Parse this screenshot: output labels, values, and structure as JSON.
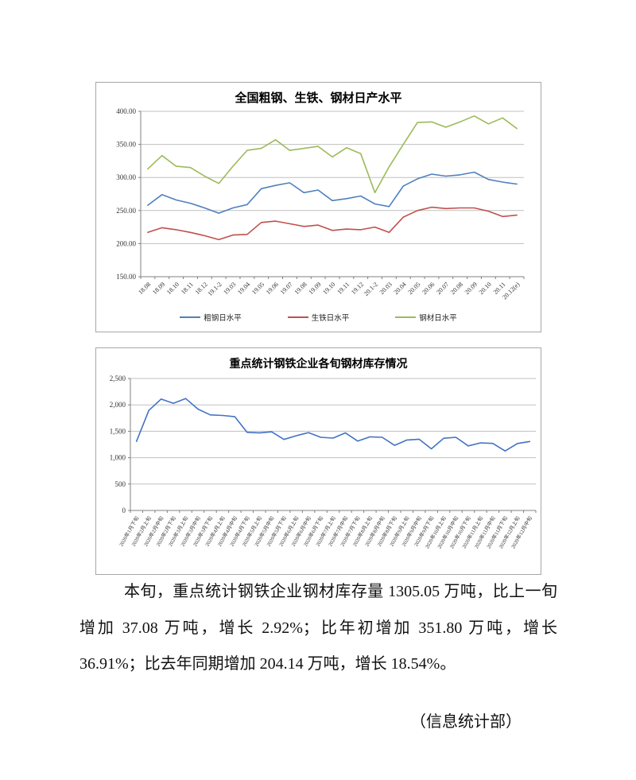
{
  "page": {
    "paragraph": "本旬，重点统计钢铁企业钢材库存量 1305.05 万吨，比上一旬增加 37.08 万吨，增长 2.92%；比年初增加 351.80 万吨，增长 36.91%；比去年同期增加 204.14 万吨，增长 18.54%。",
    "signature": "（信息统计部）"
  },
  "chart_data": [
    {
      "type": "line",
      "title": "全国粗钢、生铁、钢材日产水平",
      "legend_position": "bottom",
      "grid": true,
      "ylim": [
        150,
        400
      ],
      "yticks": [
        {
          "value": 400,
          "label": "400.00"
        },
        {
          "value": 350,
          "label": "350.00"
        },
        {
          "value": 300,
          "label": "300.00"
        },
        {
          "value": 250,
          "label": "250.00"
        },
        {
          "value": 200,
          "label": "200.00"
        },
        {
          "value": 150,
          "label": "150.00"
        }
      ],
      "categories": [
        "18.08",
        "18.09",
        "18.10",
        "18.11",
        "18.12",
        "19.1-2",
        "19.03",
        "19.04",
        "19.05",
        "19.06",
        "19.07",
        "19.08",
        "19.09",
        "19.10",
        "19.11",
        "19.12",
        "20.1-2",
        "20.03",
        "20.04",
        "20.05",
        "20.06",
        "20.07",
        "20.08",
        "20.09",
        "20.10",
        "20.11",
        "20.12(e)"
      ],
      "series": [
        {
          "name": "粗钢日水平",
          "color": "#4F81BD",
          "values": [
            258,
            274,
            266,
            261,
            254,
            246,
            254,
            259,
            283,
            288,
            292,
            277,
            281,
            265,
            268,
            272,
            260,
            256,
            287,
            298,
            305,
            302,
            304,
            308,
            297,
            293,
            290
          ]
        },
        {
          "name": "生铁日水平",
          "color": "#C0504D",
          "values": [
            217,
            224,
            221,
            217,
            212,
            206,
            213,
            214,
            232,
            234,
            230,
            226,
            228,
            220,
            222,
            221,
            225,
            217,
            240,
            250,
            255,
            253,
            254,
            254,
            249,
            241,
            243
          ]
        },
        {
          "name": "钢材日水平",
          "color": "#9BBB59",
          "values": [
            313,
            333,
            317,
            315,
            302,
            291,
            317,
            341,
            344,
            357,
            341,
            344,
            347,
            331,
            345,
            336,
            277,
            316,
            350,
            383,
            384,
            376,
            384,
            393,
            381,
            390,
            374
          ]
        }
      ]
    },
    {
      "type": "line",
      "title": "重点统计钢铁企业各旬钢材库存情况",
      "legend_position": "none",
      "grid": true,
      "ylim": [
        0,
        2500
      ],
      "yticks": [
        {
          "value": 2500,
          "label": "2,500"
        },
        {
          "value": 2000,
          "label": "2,000"
        },
        {
          "value": 1500,
          "label": "1,500"
        },
        {
          "value": 1000,
          "label": "1,000"
        },
        {
          "value": 500,
          "label": "500"
        },
        {
          "value": 0,
          "label": "0"
        }
      ],
      "categories": [
        "2020年1月下旬",
        "2020年2月上旬",
        "2020年2月中旬",
        "2020年2月下旬",
        "2020年3月上旬",
        "2020年3月中旬",
        "2020年3月下旬",
        "2020年4月上旬",
        "2020年4月中旬",
        "2020年4月下旬",
        "2020年5月上旬",
        "2020年5月中旬",
        "2020年5月下旬",
        "2020年6月上旬",
        "2020年6月中旬",
        "2020年6月下旬",
        "2020年7月上旬",
        "2020年7月中旬",
        "2020年7月下旬",
        "2020年8月上旬",
        "2020年8月中旬",
        "2020年8月下旬",
        "2020年9月上旬",
        "2020年9月中旬",
        "2020年9月下旬",
        "2020年10月上旬",
        "2020年10月中旬",
        "2020年10月下旬",
        "2020年11月上旬",
        "2020年11月中旬",
        "2020年11月下旬",
        "2020年12月上旬",
        "2020年12月中旬"
      ],
      "series": [
        {
          "color": "#4472C4",
          "values": [
            1308,
            1895,
            2110,
            2030,
            2120,
            1920,
            1810,
            1800,
            1775,
            1480,
            1470,
            1490,
            1345,
            1415,
            1475,
            1385,
            1370,
            1470,
            1315,
            1395,
            1385,
            1233,
            1335,
            1350,
            1167,
            1367,
            1385,
            1223,
            1280,
            1270,
            1126,
            1268,
            1305
          ]
        }
      ]
    }
  ]
}
